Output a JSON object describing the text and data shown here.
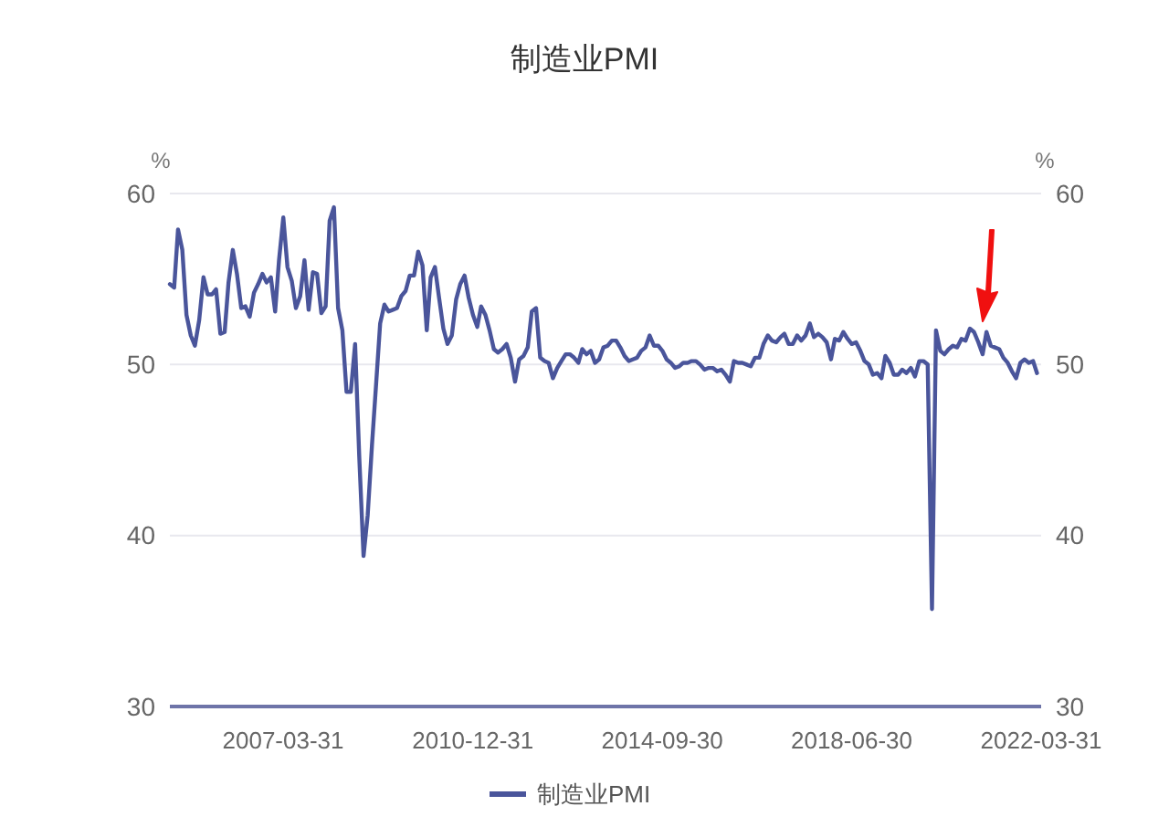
{
  "chart_data": {
    "type": "line",
    "title": "制造业PMI",
    "ylabel": "%",
    "y2label": "%",
    "x": [
      "2005-01",
      "2005-02",
      "2005-03",
      "2005-04",
      "2005-05",
      "2005-06",
      "2005-07",
      "2005-08",
      "2005-09",
      "2005-10",
      "2005-11",
      "2005-12",
      "2006-01",
      "2006-02",
      "2006-03",
      "2006-04",
      "2006-05",
      "2006-06",
      "2006-07",
      "2006-08",
      "2006-09",
      "2006-10",
      "2006-11",
      "2006-12",
      "2007-01",
      "2007-02",
      "2007-03",
      "2007-04",
      "2007-05",
      "2007-06",
      "2007-07",
      "2007-08",
      "2007-09",
      "2007-10",
      "2007-11",
      "2007-12",
      "2008-01",
      "2008-02",
      "2008-03",
      "2008-04",
      "2008-05",
      "2008-06",
      "2008-07",
      "2008-08",
      "2008-09",
      "2008-10",
      "2008-11",
      "2008-12",
      "2009-01",
      "2009-02",
      "2009-03",
      "2009-04",
      "2009-05",
      "2009-06",
      "2009-07",
      "2009-08",
      "2009-09",
      "2009-10",
      "2009-11",
      "2009-12",
      "2010-01",
      "2010-02",
      "2010-03",
      "2010-04",
      "2010-05",
      "2010-06",
      "2010-07",
      "2010-08",
      "2010-09",
      "2010-10",
      "2010-11",
      "2010-12",
      "2011-01",
      "2011-02",
      "2011-03",
      "2011-04",
      "2011-05",
      "2011-06",
      "2011-07",
      "2011-08",
      "2011-09",
      "2011-10",
      "2011-11",
      "2011-12",
      "2012-01",
      "2012-02",
      "2012-03",
      "2012-04",
      "2012-05",
      "2012-06",
      "2012-07",
      "2012-08",
      "2012-09",
      "2012-10",
      "2012-11",
      "2012-12",
      "2013-01",
      "2013-02",
      "2013-03",
      "2013-04",
      "2013-05",
      "2013-06",
      "2013-07",
      "2013-08",
      "2013-09",
      "2013-10",
      "2013-11",
      "2013-12",
      "2014-01",
      "2014-02",
      "2014-03",
      "2014-04",
      "2014-05",
      "2014-06",
      "2014-07",
      "2014-08",
      "2014-09",
      "2014-10",
      "2014-11",
      "2014-12",
      "2015-01",
      "2015-02",
      "2015-03",
      "2015-04",
      "2015-05",
      "2015-06",
      "2015-07",
      "2015-08",
      "2015-09",
      "2015-10",
      "2015-11",
      "2015-12",
      "2016-01",
      "2016-02",
      "2016-03",
      "2016-04",
      "2016-05",
      "2016-06",
      "2016-07",
      "2016-08",
      "2016-09",
      "2016-10",
      "2016-11",
      "2016-12",
      "2017-01",
      "2017-02",
      "2017-03",
      "2017-04",
      "2017-05",
      "2017-06",
      "2017-07",
      "2017-08",
      "2017-09",
      "2017-10",
      "2017-11",
      "2017-12",
      "2018-01",
      "2018-02",
      "2018-03",
      "2018-04",
      "2018-05",
      "2018-06",
      "2018-07",
      "2018-08",
      "2018-09",
      "2018-10",
      "2018-11",
      "2018-12",
      "2019-01",
      "2019-02",
      "2019-03",
      "2019-04",
      "2019-05",
      "2019-06",
      "2019-07",
      "2019-08",
      "2019-09",
      "2019-10",
      "2019-11",
      "2019-12",
      "2020-01",
      "2020-02",
      "2020-03",
      "2020-04",
      "2020-05",
      "2020-06",
      "2020-07",
      "2020-08",
      "2020-09",
      "2020-10",
      "2020-11",
      "2020-12",
      "2021-01",
      "2021-02",
      "2021-03",
      "2021-04",
      "2021-05",
      "2021-06",
      "2021-07",
      "2021-08",
      "2021-09",
      "2021-10",
      "2021-11",
      "2021-12",
      "2022-01",
      "2022-02",
      "2022-03"
    ],
    "series": [
      {
        "name": "制造业PMI",
        "color": "#4a559b",
        "values": [
          54.7,
          54.5,
          57.9,
          56.7,
          52.9,
          51.7,
          51.1,
          52.6,
          55.1,
          54.1,
          54.1,
          54.4,
          51.8,
          51.9,
          54.8,
          56.7,
          55.3,
          53.3,
          53.4,
          52.8,
          54.2,
          54.7,
          55.3,
          54.8,
          55.1,
          53.1,
          56.1,
          58.6,
          55.7,
          54.9,
          53.3,
          54.0,
          56.1,
          53.2,
          55.4,
          55.3,
          53.0,
          53.4,
          58.4,
          59.2,
          53.3,
          52.0,
          48.4,
          48.4,
          51.2,
          44.6,
          38.8,
          41.2,
          45.3,
          49.0,
          52.4,
          53.5,
          53.1,
          53.2,
          53.3,
          54.0,
          54.3,
          55.2,
          55.2,
          56.6,
          55.8,
          52.0,
          55.1,
          55.7,
          53.9,
          52.1,
          51.2,
          51.7,
          53.8,
          54.7,
          55.2,
          53.9,
          52.9,
          52.2,
          53.4,
          52.9,
          52.0,
          50.9,
          50.7,
          50.9,
          51.2,
          50.4,
          49.0,
          50.3,
          50.5,
          51.0,
          53.1,
          53.3,
          50.4,
          50.2,
          50.1,
          49.2,
          49.8,
          50.2,
          50.6,
          50.6,
          50.4,
          50.1,
          50.9,
          50.6,
          50.8,
          50.1,
          50.3,
          51.0,
          51.1,
          51.4,
          51.4,
          51.0,
          50.5,
          50.2,
          50.3,
          50.4,
          50.8,
          51.0,
          51.7,
          51.1,
          51.1,
          50.8,
          50.3,
          50.1,
          49.8,
          49.9,
          50.1,
          50.1,
          50.2,
          50.2,
          50.0,
          49.7,
          49.8,
          49.8,
          49.6,
          49.7,
          49.4,
          49.0,
          50.2,
          50.1,
          50.1,
          50.0,
          49.9,
          50.4,
          50.4,
          51.2,
          51.7,
          51.4,
          51.3,
          51.6,
          51.8,
          51.2,
          51.2,
          51.7,
          51.4,
          51.7,
          52.4,
          51.6,
          51.8,
          51.6,
          51.3,
          50.3,
          51.5,
          51.4,
          51.9,
          51.5,
          51.2,
          51.3,
          50.8,
          50.2,
          50.0,
          49.4,
          49.5,
          49.2,
          50.5,
          50.1,
          49.4,
          49.4,
          49.7,
          49.5,
          49.8,
          49.3,
          50.2,
          50.2,
          50.0,
          35.7,
          52.0,
          50.8,
          50.6,
          50.9,
          51.1,
          51.0,
          51.5,
          51.4,
          52.1,
          51.9,
          51.3,
          50.6,
          51.9,
          51.1,
          51.0,
          50.9,
          50.4,
          50.1,
          49.6,
          49.2,
          50.1,
          50.3,
          50.1,
          50.2,
          49.5
        ]
      }
    ],
    "xlim": [
      "2005-01-01",
      "2022-03-31"
    ],
    "xticks": [
      "2007-03-31",
      "2010-12-31",
      "2014-09-30",
      "2018-06-30",
      "2022-03-31"
    ],
    "ylim": [
      30,
      60
    ],
    "yticks": [
      30,
      40,
      50,
      60
    ],
    "y2lim": [
      30,
      60
    ],
    "y2ticks": [
      30,
      40,
      50,
      60
    ],
    "grid": "y",
    "legend": "bottom",
    "marker": "none",
    "line_style": "solid"
  }
}
